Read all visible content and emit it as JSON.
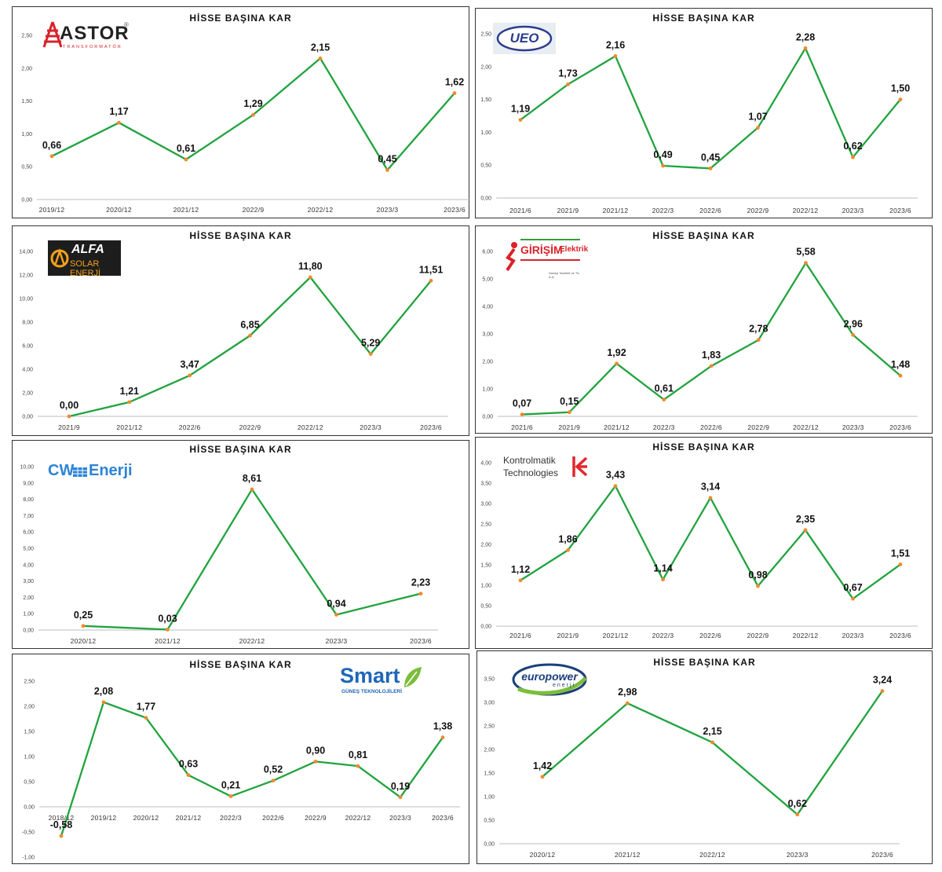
{
  "colors": {
    "line": "#21a33e",
    "marker": "#f08a2a",
    "axis": "#bdbdbd"
  },
  "chart_data": [
    {
      "type": "line",
      "title": "HİSSE BAŞINA KAR",
      "logo": {
        "text": "ASTOR",
        "subtext": "TRANSFORMATÖR",
        "mark": "®",
        "icon": "astor-pylon-icon"
      },
      "categories": [
        "2019/12",
        "2020/12",
        "2021/12",
        "2022/9",
        "2022/12",
        "2023/3",
        "2023/6"
      ],
      "values": [
        0.66,
        1.17,
        0.61,
        1.29,
        2.15,
        0.45,
        1.62
      ],
      "labels": [
        "0,66",
        "1,17",
        "0,61",
        "1,29",
        "2,15",
        "0,45",
        "1,62"
      ],
      "ylim": [
        0,
        2.5
      ],
      "yticks": [
        "0,00",
        "0,50",
        "1,00",
        "1,50",
        "2,00",
        "2,50"
      ],
      "grid": false
    },
    {
      "type": "line",
      "title": "HİSSE BAŞINA KAR",
      "logo": {
        "text": "UEO",
        "icon": "ueo-oval-icon"
      },
      "categories": [
        "2021/6",
        "2021/9",
        "2021/12",
        "2022/3",
        "2022/6",
        "2022/9",
        "2022/12",
        "2023/3",
        "2023/6"
      ],
      "values": [
        1.19,
        1.73,
        2.16,
        0.49,
        0.45,
        1.07,
        2.28,
        0.62,
        1.5
      ],
      "labels": [
        "1,19",
        "1,73",
        "2,16",
        "0,49",
        "0,45",
        "1,07",
        "2,28",
        "0,62",
        "1,50"
      ],
      "ylim": [
        0,
        2.5
      ],
      "yticks": [
        "0,00",
        "0,50",
        "1,00",
        "1,50",
        "2,00",
        "2,50"
      ],
      "grid": false
    },
    {
      "type": "line",
      "title": "HİSSE BAŞINA KAR",
      "logo": {
        "text": "ALFA",
        "subtext": "SOLAR ENERJİ",
        "icon": "alfa-sun-icon"
      },
      "categories": [
        "2021/9",
        "2021/12",
        "2022/6",
        "2022/9",
        "2022/12",
        "2023/3",
        "2023/6"
      ],
      "values": [
        0.0,
        1.21,
        3.47,
        6.85,
        11.8,
        5.29,
        11.51
      ],
      "labels": [
        "0,00",
        "1,21",
        "3,47",
        "6,85",
        "11,80",
        "5,29",
        "11,51"
      ],
      "ylim": [
        0,
        14
      ],
      "yticks": [
        "0,00",
        "2,00",
        "4,00",
        "6,00",
        "8,00",
        "10,00",
        "12,00",
        "14,00"
      ],
      "grid": false
    },
    {
      "type": "line",
      "title": "HİSSE BAŞINA KAR",
      "logo": {
        "text": "GİRİŞİM",
        "text2": "Elektrik",
        "subtext": "Sanayi Taahhüt ve Tic. A.Ş.",
        "icon": "girisim-figure-icon"
      },
      "categories": [
        "2021/6",
        "2021/9",
        "2021/12",
        "2022/3",
        "2022/6",
        "2022/9",
        "2022/12",
        "2023/3",
        "2023/6"
      ],
      "values": [
        0.07,
        0.15,
        1.92,
        0.61,
        1.83,
        2.78,
        5.58,
        2.96,
        1.48
      ],
      "labels": [
        "0,07",
        "0,15",
        "1,92",
        "0,61",
        "1,83",
        "2,78",
        "5,58",
        "2,96",
        "1,48"
      ],
      "ylim": [
        0,
        6
      ],
      "yticks": [
        "0,00",
        "1,00",
        "2,00",
        "3,00",
        "4,00",
        "5,00",
        "6,00"
      ],
      "grid": false
    },
    {
      "type": "line",
      "title": "HİSSE BAŞINA KAR",
      "logo": {
        "text": "CW",
        "text2": "Enerji",
        "icon": "cw-panel-icon"
      },
      "categories": [
        "2020/12",
        "2021/12",
        "2022/12",
        "2023/3",
        "2023/6"
      ],
      "values": [
        0.25,
        0.03,
        8.61,
        0.94,
        2.23
      ],
      "labels": [
        "0,25",
        "0,03",
        "8,61",
        "0,94",
        "2,23"
      ],
      "ylim": [
        0,
        10
      ],
      "yticks": [
        "0,00",
        "1,00",
        "2,00",
        "3,00",
        "4,00",
        "5,00",
        "6,00",
        "7,00",
        "8,00",
        "9,00",
        "10,00"
      ],
      "grid": false
    },
    {
      "type": "line",
      "title": "HİSSE BAŞINA KAR",
      "logo": {
        "text": "Kontrolmatik",
        "text2": "Technologies",
        "icon": "kontrolmatik-arrow-icon"
      },
      "categories": [
        "2021/6",
        "2021/9",
        "2021/12",
        "2022/3",
        "2022/6",
        "2022/9",
        "2022/12",
        "2023/3",
        "2023/6"
      ],
      "values": [
        1.12,
        1.86,
        3.43,
        1.14,
        3.14,
        0.98,
        2.35,
        0.67,
        1.51
      ],
      "labels": [
        "1,12",
        "1,86",
        "3,43",
        "1,14",
        "3,14",
        "0,98",
        "2,35",
        "0,67",
        "1,51"
      ],
      "ylim": [
        0,
        4
      ],
      "yticks": [
        "0,00",
        "0,50",
        "1,00",
        "1,50",
        "2,00",
        "2,50",
        "3,00",
        "3,50",
        "4,00"
      ],
      "grid": false
    },
    {
      "type": "line",
      "title": "HİSSE BAŞINA KAR",
      "logo": {
        "text": "Smart",
        "subtext": "GÜNEŞ TEKNOLOJİLERİ",
        "icon": "smart-leaf-icon"
      },
      "categories": [
        "2018/12",
        "2019/12",
        "2020/12",
        "2021/12",
        "2022/3",
        "2022/6",
        "2022/9",
        "2022/12",
        "2023/3",
        "2023/6"
      ],
      "values": [
        -0.58,
        2.08,
        1.77,
        0.63,
        0.21,
        0.52,
        0.9,
        0.81,
        0.19,
        1.38
      ],
      "labels": [
        "-0,58",
        "2,08",
        "1,77",
        "0,63",
        "0,21",
        "0,52",
        "0,90",
        "0,81",
        "0,19",
        "1,38"
      ],
      "ylim": [
        -1,
        2.5
      ],
      "yticks": [
        "-1,00",
        "-0,50",
        "0,00",
        "0,50",
        "1,00",
        "1,50",
        "2,00",
        "2,50"
      ],
      "grid": false
    },
    {
      "type": "line",
      "title": "HİSSE BAŞINA KAR",
      "logo": {
        "text": "europower",
        "subtext": "enerji",
        "icon": "europower-swoosh-icon"
      },
      "categories": [
        "2020/12",
        "2021/12",
        "2022/12",
        "2023/3",
        "2023/6"
      ],
      "values": [
        1.42,
        2.98,
        2.15,
        0.62,
        3.24
      ],
      "labels": [
        "1,42",
        "2,98",
        "2,15",
        "0,62",
        "3,24"
      ],
      "ylim": [
        0,
        3.5
      ],
      "yticks": [
        "0,00",
        "0,50",
        "1,00",
        "1,50",
        "2,00",
        "2,50",
        "3,00",
        "3,50"
      ],
      "grid": false
    }
  ]
}
